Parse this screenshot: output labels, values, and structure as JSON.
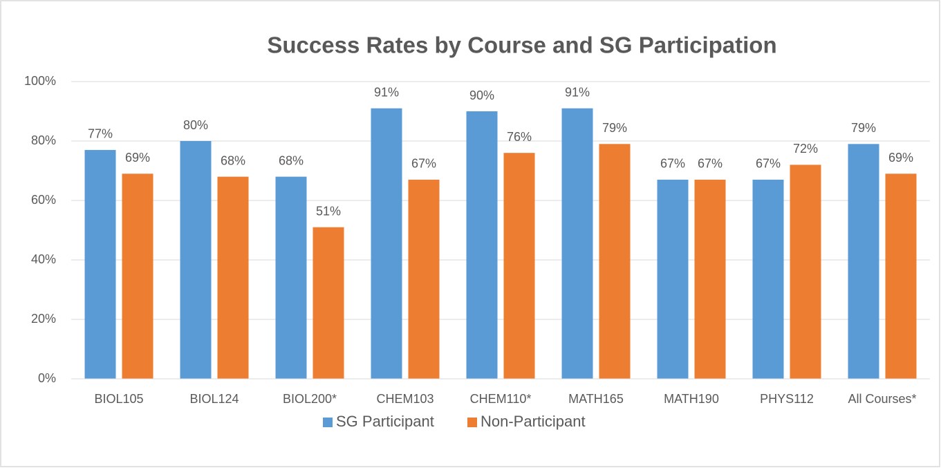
{
  "chart_data": {
    "type": "bar",
    "title": "Success Rates by Course and SG Participation",
    "categories": [
      "BIOL105",
      "BIOL124",
      "BIOL200*",
      "CHEM103",
      "CHEM110*",
      "MATH165",
      "MATH190",
      "PHYS112",
      "All Courses*"
    ],
    "series": [
      {
        "name": "SG Participant",
        "color": "#5b9bd5",
        "values": [
          77,
          80,
          68,
          91,
          90,
          91,
          67,
          67,
          79
        ],
        "value_labels": [
          "77%",
          "80%",
          "68%",
          "91%",
          "90%",
          "91%",
          "67%",
          "67%",
          "79%"
        ]
      },
      {
        "name": "Non-Participant",
        "color": "#ed7d31",
        "values": [
          69,
          68,
          51,
          67,
          76,
          79,
          67,
          72,
          69
        ],
        "value_labels": [
          "69%",
          "68%",
          "51%",
          "67%",
          "76%",
          "79%",
          "67%",
          "72%",
          "69%"
        ]
      }
    ],
    "ylim": [
      0,
      100
    ],
    "yticks": [
      {
        "value": 0,
        "label": "0%"
      },
      {
        "value": 20,
        "label": "20%"
      },
      {
        "value": 40,
        "label": "40%"
      },
      {
        "value": 60,
        "label": "60%"
      },
      {
        "value": 80,
        "label": "80%"
      },
      {
        "value": 100,
        "label": "100%"
      }
    ],
    "grid": true,
    "legend": "bottom"
  }
}
